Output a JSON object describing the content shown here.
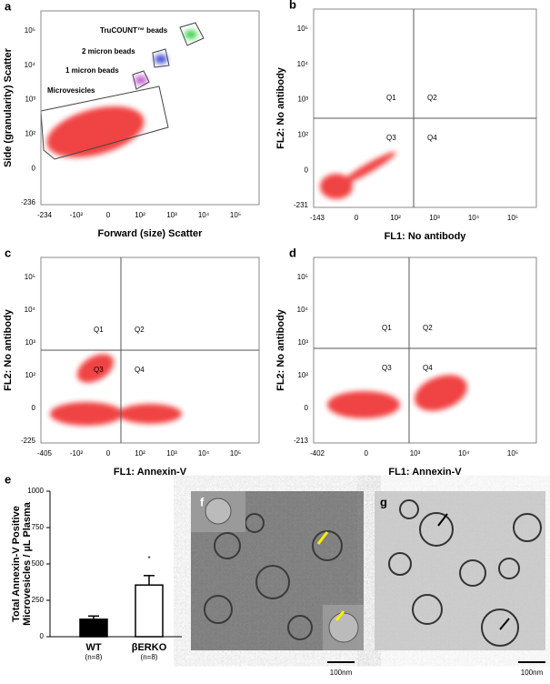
{
  "figure": {
    "panels": [
      {
        "letter": "a",
        "x_label": "Forward (size) Scatter",
        "y_label": "Side (granularity) Scatter",
        "x_ticks": [
          "-234",
          "-10²",
          "0",
          "10²",
          "10³",
          "10⁴",
          "10⁵"
        ],
        "y_ticks": [
          "10⁵",
          "10⁴",
          "10³",
          "10²",
          "0",
          "-236"
        ],
        "gates": [
          "TruCOUNT™ beads",
          "2 micron beads",
          "1 micron beads",
          "Microvesicles"
        ]
      },
      {
        "letter": "b",
        "x_label": "FL1: No antibody",
        "y_label": "FL2: No antibody",
        "x_ticks": [
          "-143",
          "0",
          "10²",
          "10³",
          "10⁴",
          "10⁵"
        ],
        "y_ticks": [
          "10⁵",
          "10⁴",
          "10³",
          "10²",
          "0",
          "-231"
        ],
        "quadrants": [
          "Q1",
          "Q2",
          "Q3",
          "Q4"
        ]
      },
      {
        "letter": "c",
        "x_label": "FL1: Annexin-V",
        "y_label": "FL2: No antibody",
        "x_ticks": [
          "-405",
          "-10²",
          "0",
          "10²",
          "10³",
          "10⁴",
          "10⁵"
        ],
        "y_ticks": [
          "10⁵",
          "10⁴",
          "10³",
          "10²",
          "0",
          "-225"
        ],
        "quadrants": [
          "Q1",
          "Q2",
          "Q3",
          "Q4"
        ]
      },
      {
        "letter": "d",
        "x_label": "FL1: Annexin-V",
        "y_label": "FL2: No antibody",
        "x_ticks": [
          "-402",
          "0",
          "10³",
          "10⁴",
          "10⁵"
        ],
        "y_ticks": [
          "10⁵",
          "10⁴",
          "10³",
          "10²",
          "0",
          "-213"
        ],
        "quadrants": [
          "Q1",
          "Q2",
          "Q3",
          "Q4"
        ]
      }
    ],
    "images": [
      {
        "letter": "f",
        "scale_bar": "100nm"
      },
      {
        "letter": "g",
        "scale_bar": "100nm"
      }
    ]
  },
  "chart_data": {
    "type": "bar",
    "panel": "e",
    "y_label": [
      "Total Annexin-V Positive",
      "Microvesicles / µL Plasma"
    ],
    "categories": [
      "WT",
      "βERKO"
    ],
    "category_notes": [
      "(n=8)",
      "(n=8)"
    ],
    "values": [
      120,
      355
    ],
    "errors": [
      22,
      65
    ],
    "colors": [
      "#000000",
      "#ffffff"
    ],
    "ylim": [
      0,
      1000
    ],
    "yticks": [
      0,
      250,
      500,
      750,
      1000
    ],
    "annotation": "*"
  }
}
